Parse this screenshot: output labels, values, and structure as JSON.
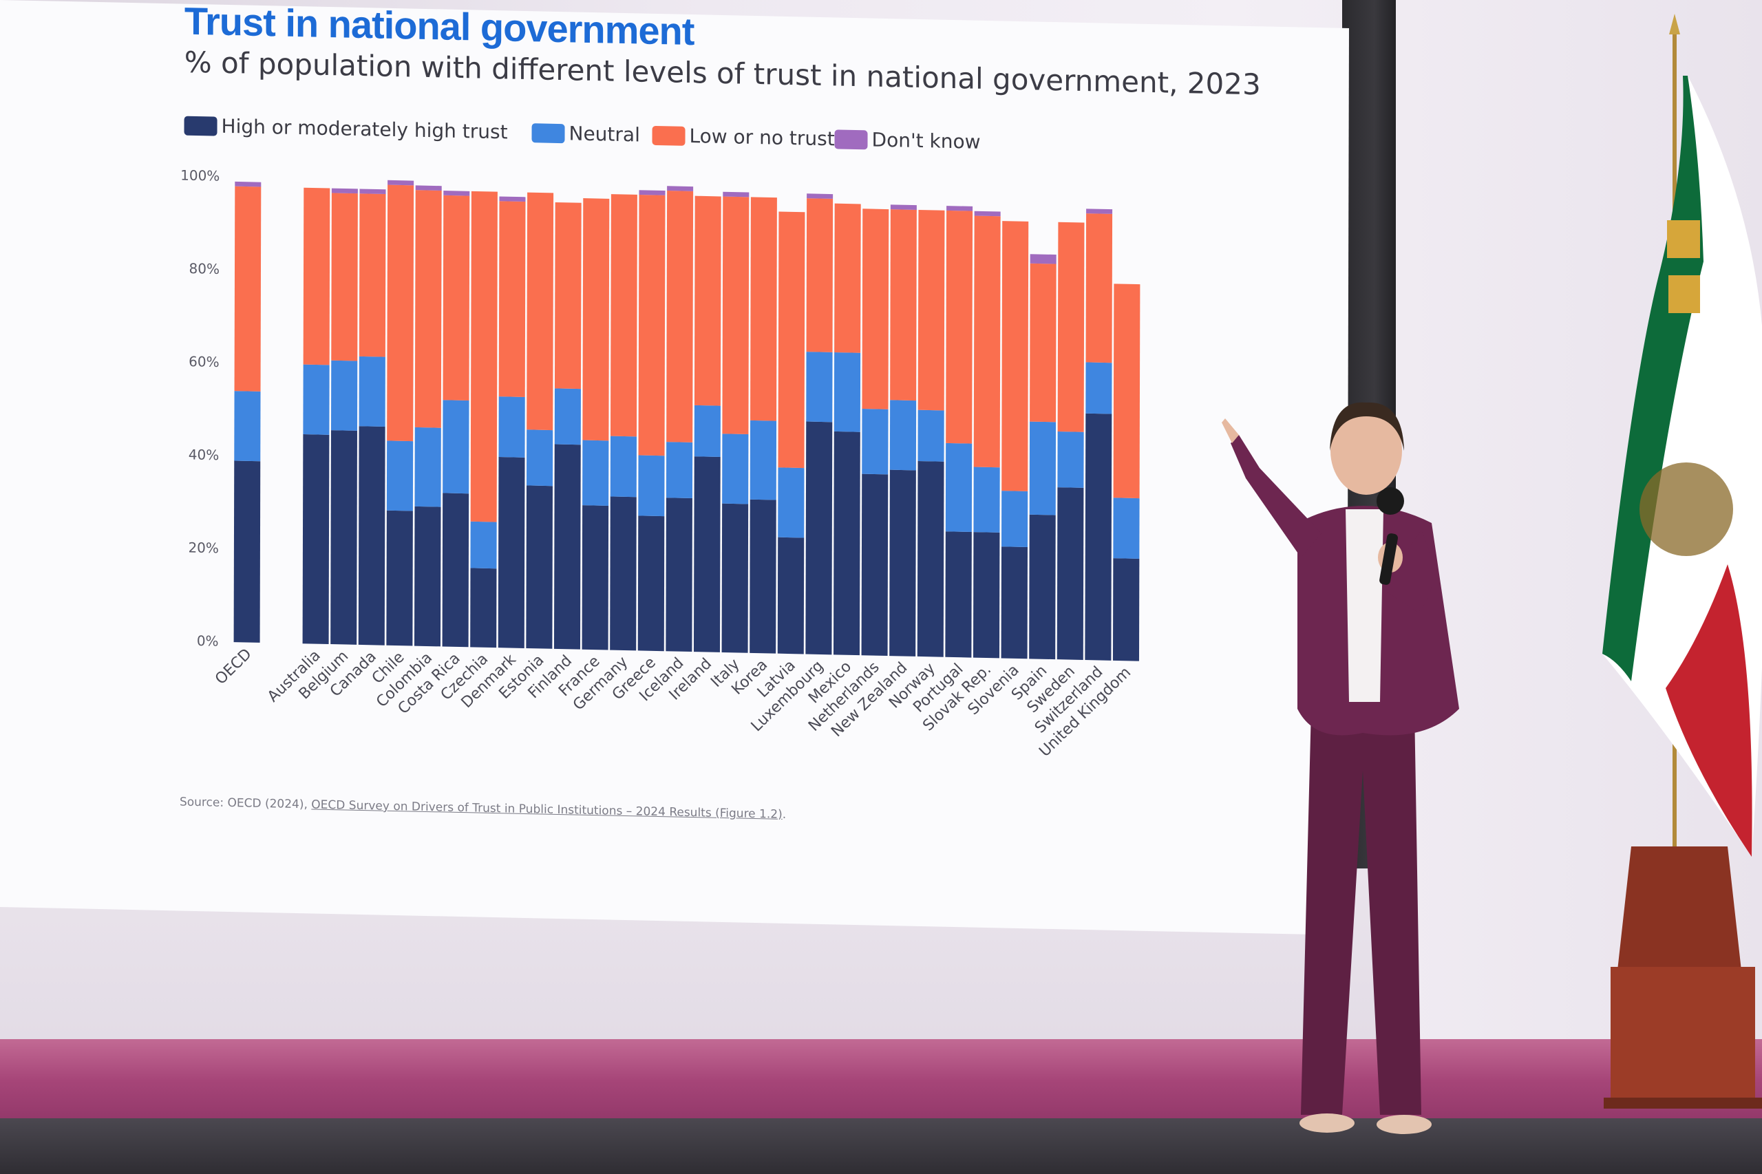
{
  "slide": {
    "title": "Trust in national government",
    "subtitle": "% of population with different levels of trust in national government, 2023",
    "source_prefix": "Source: OECD (2024),",
    "source_link": "OECD Survey on Drivers of Trust in Public Institutions – 2024 Results (Figure 1.2)",
    "source_suffix": "."
  },
  "legend": [
    {
      "label": "High or moderately high trust",
      "color": "#283a6e"
    },
    {
      "label": "Neutral",
      "color": "#3f86e0"
    },
    {
      "label": "Low or no trust",
      "color": "#fa6f4f"
    },
    {
      "label": "Don't know",
      "color": "#a06bbf"
    }
  ],
  "chart_data": {
    "type": "bar",
    "stacked": true,
    "orientation": "vertical",
    "categories": [
      "OECD",
      "Australia",
      "Belgium",
      "Canada",
      "Chile",
      "Colombia",
      "Costa Rica",
      "Czechia",
      "Denmark",
      "Estonia",
      "Finland",
      "France",
      "Germany",
      "Greece",
      "Iceland",
      "Ireland",
      "Italy",
      "Korea",
      "Latvia",
      "Luxembourg",
      "Mexico",
      "Netherlands",
      "New Zealand",
      "Norway",
      "Portugal",
      "Slovak Rep.",
      "Slovenia",
      "Spain",
      "Sweden",
      "Switzerland",
      "United Kingdom"
    ],
    "series": [
      {
        "name": "High or moderately high trust",
        "color": "#283a6e",
        "values": [
          39,
          45,
          46,
          47,
          29,
          30,
          33,
          17,
          41,
          35,
          44,
          31,
          33,
          29,
          33,
          42,
          32,
          33,
          25,
          50,
          48,
          39,
          40,
          42,
          27,
          27,
          24,
          31,
          37,
          53,
          22
        ]
      },
      {
        "name": "Neutral",
        "color": "#3f86e0",
        "values": [
          15,
          15,
          15,
          15,
          15,
          17,
          20,
          10,
          13,
          12,
          12,
          14,
          13,
          13,
          12,
          11,
          15,
          17,
          15,
          15,
          17,
          14,
          15,
          11,
          19,
          14,
          12,
          20,
          12,
          11,
          13
        ]
      },
      {
        "name": "Low or no trust",
        "color": "#fa6f4f",
        "values": [
          44,
          38,
          36,
          35,
          55,
          51,
          44,
          71,
          42,
          51,
          40,
          52,
          52,
          56,
          54,
          45,
          51,
          48,
          55,
          33,
          32,
          43,
          41,
          43,
          50,
          54,
          58,
          34,
          45,
          32,
          46
        ]
      },
      {
        "name": "Don't know",
        "color": "#a06bbf",
        "values": [
          1,
          0,
          1,
          1,
          1,
          1,
          1,
          0,
          1,
          0,
          0,
          0,
          0,
          1,
          1,
          0,
          1,
          0,
          0,
          1,
          0,
          0,
          1,
          0,
          1,
          1,
          0,
          2,
          0,
          1,
          0
        ]
      }
    ],
    "yticks": [
      "0%",
      "20%",
      "40%",
      "60%",
      "80%",
      "100%"
    ],
    "ylim": [
      0,
      100
    ],
    "grid": false,
    "legend_position": "top-left"
  }
}
